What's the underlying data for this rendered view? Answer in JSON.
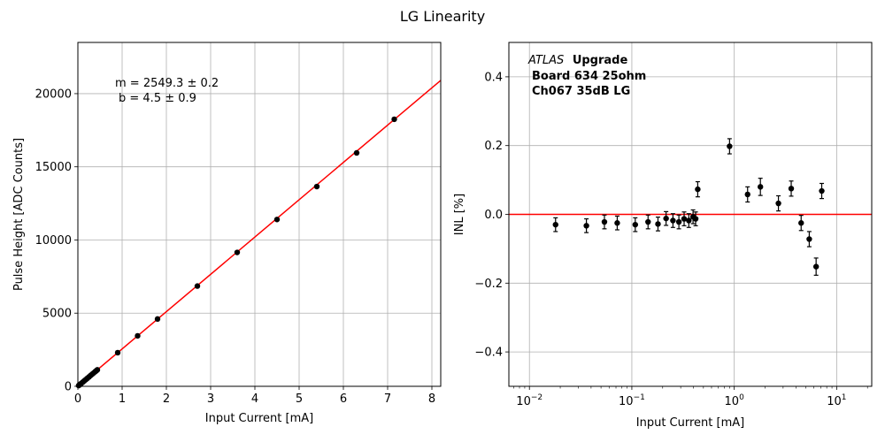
{
  "figure": {
    "title": "LG Linearity"
  },
  "chart_data": [
    {
      "type": "scatter",
      "xlabel": "Input Current [mA]",
      "ylabel": "Pulse Height [ADC Counts]",
      "xlim": [
        0,
        8.2
      ],
      "ylim": [
        0,
        23500
      ],
      "xticks": [
        0,
        1,
        2,
        3,
        4,
        5,
        6,
        7,
        8
      ],
      "yticks": [
        0,
        5000,
        10000,
        15000,
        20000
      ],
      "grid": true,
      "annotations": [
        "m = 2549.3 ± 0.2",
        "b = 4.5 ± 0.9"
      ],
      "fit": {
        "slope": 2549.3,
        "intercept": 4.5,
        "color": "#ff0000"
      },
      "marker_color": "#000000",
      "points": {
        "x": [
          0.018,
          0.036,
          0.054,
          0.072,
          0.108,
          0.144,
          0.18,
          0.216,
          0.252,
          0.288,
          0.324,
          0.36,
          0.396,
          0.42,
          0.44,
          0.9,
          1.35,
          1.8,
          2.7,
          3.6,
          4.5,
          5.4,
          6.3,
          7.15
        ],
        "y": [
          50,
          95,
          140,
          185,
          280,
          370,
          460,
          555,
          645,
          740,
          830,
          920,
          1015,
          1075,
          1125,
          2300,
          3450,
          4600,
          6850,
          9150,
          11400,
          13650,
          15950,
          18250
        ]
      }
    },
    {
      "type": "scatter",
      "xlabel": "Input Current [mA]",
      "ylabel": "INL [%]",
      "xscale": "log",
      "xlim": [
        0.0063,
        22
      ],
      "ylim": [
        -0.5,
        0.5
      ],
      "xticks": [
        0.01,
        0.1,
        1,
        10
      ],
      "xtick_labels": [
        {
          "base": "10",
          "exp": "−2"
        },
        {
          "base": "10",
          "exp": "−1"
        },
        {
          "base": "10",
          "exp": "0"
        },
        {
          "base": "10",
          "exp": "1"
        }
      ],
      "yticks": [
        -0.4,
        -0.2,
        0.0,
        0.2,
        0.4
      ],
      "ytick_labels": [
        "−0.4",
        "−0.2",
        "0.0",
        "0.2",
        "0.4"
      ],
      "grid": true,
      "reference_line": {
        "y": 0,
        "color": "#ff0000"
      },
      "annotation": {
        "italic": "ATLAS",
        "bold": "Upgrade",
        "line2": "Board 634 25ohm",
        "line3": "Ch067 35dB LG"
      },
      "marker_color": "#000000",
      "points": {
        "x": [
          0.018,
          0.036,
          0.054,
          0.072,
          0.108,
          0.144,
          0.18,
          0.216,
          0.252,
          0.288,
          0.324,
          0.36,
          0.396,
          0.42,
          0.44,
          0.9,
          1.35,
          1.8,
          2.7,
          3.6,
          4.5,
          5.4,
          6.3,
          7.15
        ],
        "y": [
          -0.03,
          -0.033,
          -0.022,
          -0.025,
          -0.03,
          -0.022,
          -0.028,
          -0.012,
          -0.018,
          -0.022,
          -0.013,
          -0.018,
          -0.007,
          -0.013,
          0.073,
          0.198,
          0.058,
          0.08,
          0.032,
          0.075,
          -0.025,
          -0.072,
          -0.152,
          0.068
        ],
        "yerr": [
          0.02,
          0.02,
          0.02,
          0.02,
          0.02,
          0.02,
          0.02,
          0.02,
          0.02,
          0.02,
          0.02,
          0.02,
          0.02,
          0.02,
          0.022,
          0.022,
          0.022,
          0.025,
          0.022,
          0.022,
          0.022,
          0.022,
          0.025,
          0.022
        ]
      }
    }
  ]
}
